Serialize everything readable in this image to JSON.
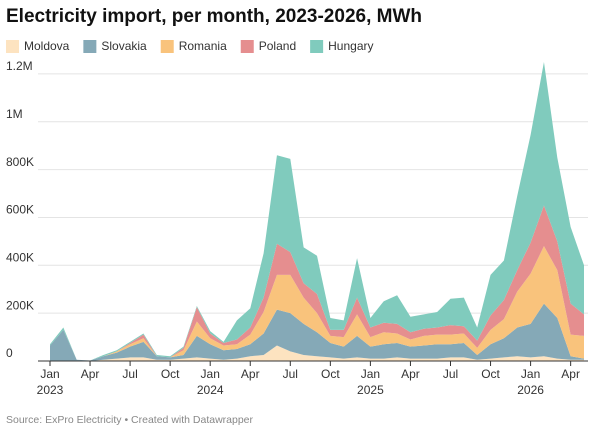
{
  "chart_data": {
    "type": "stacked-area",
    "title": "Electricity import, per month, 2023-2026, MWh",
    "source": "Source: ExPro Electricity • Created with Datawrapper",
    "x": [
      "2023-01",
      "2023-02",
      "2023-03",
      "2023-04",
      "2023-05",
      "2023-06",
      "2023-07",
      "2023-08",
      "2023-09",
      "2023-10",
      "2023-11",
      "2023-12",
      "2024-01",
      "2024-02",
      "2024-03",
      "2024-04",
      "2024-05",
      "2024-06",
      "2024-07",
      "2024-08",
      "2024-09",
      "2024-10",
      "2024-11",
      "2024-12",
      "2025-01",
      "2025-02",
      "2025-03",
      "2025-04",
      "2025-05",
      "2025-06",
      "2025-07",
      "2025-08",
      "2025-09",
      "2025-10",
      "2025-11",
      "2025-12",
      "2026-01",
      "2026-02",
      "2026-03",
      "2026-04",
      "2026-05"
    ],
    "xticks": [
      {
        "value": "2023-01",
        "label": "Jan 2023"
      },
      {
        "value": "2023-04",
        "label": "Apr"
      },
      {
        "value": "2023-07",
        "label": "Jul"
      },
      {
        "value": "2023-10",
        "label": "Oct"
      },
      {
        "value": "2024-01",
        "label": "Jan 2024"
      },
      {
        "value": "2024-04",
        "label": "Apr"
      },
      {
        "value": "2024-07",
        "label": "Jul"
      },
      {
        "value": "2024-10",
        "label": "Oct"
      },
      {
        "value": "2025-01",
        "label": "Jan 2025"
      },
      {
        "value": "2025-04",
        "label": "Apr"
      },
      {
        "value": "2025-07",
        "label": "Jul"
      },
      {
        "value": "2025-10",
        "label": "Oct"
      },
      {
        "value": "2026-01",
        "label": "Jan 2026"
      },
      {
        "value": "2026-04",
        "label": "Apr"
      }
    ],
    "ylim": [
      0,
      1300000
    ],
    "yticks": [
      0,
      {
        "value": 200000,
        "label": "200K"
      },
      {
        "value": 400000,
        "label": "400K"
      },
      {
        "value": 600000,
        "label": "600K"
      },
      {
        "value": 800000,
        "label": "800K"
      },
      {
        "value": 1000000,
        "label": "1M"
      },
      {
        "value": 1200000,
        "label": "1.2M"
      }
    ],
    "grid": true,
    "legend": "top",
    "series": [
      {
        "name": "Moldova",
        "color": "#fde3c0",
        "values": [
          0,
          0,
          0,
          0,
          5000,
          10000,
          15000,
          15000,
          5000,
          5000,
          10000,
          15000,
          10000,
          5000,
          10000,
          20000,
          25000,
          65000,
          40000,
          25000,
          20000,
          15000,
          10000,
          15000,
          10000,
          10000,
          15000,
          10000,
          10000,
          10000,
          15000,
          15000,
          5000,
          10000,
          15000,
          20000,
          15000,
          20000,
          10000,
          5000,
          5000
        ]
      },
      {
        "name": "Slovakia",
        "color": "#85a9b7",
        "values": [
          65000,
          130000,
          5000,
          2000,
          15000,
          25000,
          45000,
          65000,
          15000,
          10000,
          15000,
          90000,
          60000,
          40000,
          40000,
          50000,
          90000,
          150000,
          160000,
          130000,
          100000,
          60000,
          50000,
          90000,
          50000,
          60000,
          60000,
          50000,
          55000,
          60000,
          55000,
          60000,
          20000,
          60000,
          80000,
          120000,
          140000,
          220000,
          170000,
          15000,
          5000
        ]
      },
      {
        "name": "Romania",
        "color": "#f9c37c",
        "values": [
          0,
          0,
          0,
          0,
          0,
          5000,
          10000,
          15000,
          0,
          0,
          20000,
          60000,
          25000,
          20000,
          20000,
          40000,
          90000,
          145000,
          160000,
          110000,
          80000,
          30000,
          40000,
          90000,
          40000,
          50000,
          40000,
          30000,
          40000,
          40000,
          40000,
          40000,
          30000,
          60000,
          80000,
          150000,
          210000,
          240000,
          200000,
          90000,
          95000
        ]
      },
      {
        "name": "Poland",
        "color": "#e58e8f",
        "values": [
          0,
          0,
          0,
          0,
          0,
          0,
          5000,
          15000,
          0,
          0,
          10000,
          60000,
          20000,
          10000,
          20000,
          30000,
          60000,
          130000,
          95000,
          60000,
          80000,
          25000,
          30000,
          70000,
          40000,
          40000,
          40000,
          30000,
          30000,
          30000,
          40000,
          30000,
          30000,
          60000,
          80000,
          90000,
          130000,
          170000,
          120000,
          130000,
          90000
        ]
      },
      {
        "name": "Hungary",
        "color": "#80cbbd",
        "values": [
          5000,
          10000,
          0,
          0,
          5000,
          5000,
          5000,
          5000,
          5000,
          5000,
          5000,
          5000,
          10000,
          5000,
          80000,
          80000,
          185000,
          370000,
          390000,
          150000,
          160000,
          50000,
          40000,
          165000,
          40000,
          90000,
          120000,
          65000,
          60000,
          65000,
          110000,
          120000,
          55000,
          170000,
          165000,
          310000,
          450000,
          600000,
          350000,
          320000,
          205000
        ]
      }
    ]
  }
}
